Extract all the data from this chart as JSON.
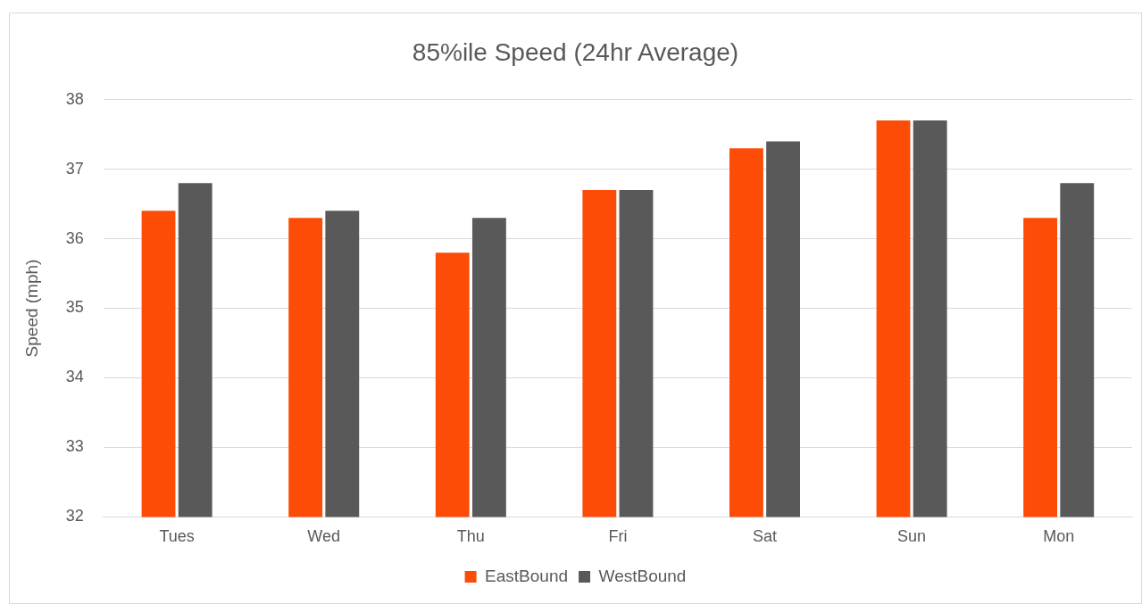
{
  "chart_data": {
    "type": "bar",
    "title": "85%ile Speed (24hr Average)",
    "ylabel": "Speed (mph)",
    "categories": [
      "Tues",
      "Wed",
      "Thu",
      "Fri",
      "Sat",
      "Sun",
      "Mon"
    ],
    "series": [
      {
        "name": "EastBound",
        "color": "#fc4c07",
        "values": [
          36.4,
          36.3,
          35.8,
          36.7,
          37.3,
          37.7,
          36.3
        ]
      },
      {
        "name": "WestBound",
        "color": "#595959",
        "values": [
          36.8,
          36.4,
          36.3,
          36.7,
          37.4,
          37.7,
          36.8
        ]
      }
    ],
    "ylim": [
      32,
      38
    ],
    "yticks": [
      32,
      33,
      34,
      35,
      36,
      37,
      38
    ],
    "grid": "y",
    "legend": "bottom"
  }
}
